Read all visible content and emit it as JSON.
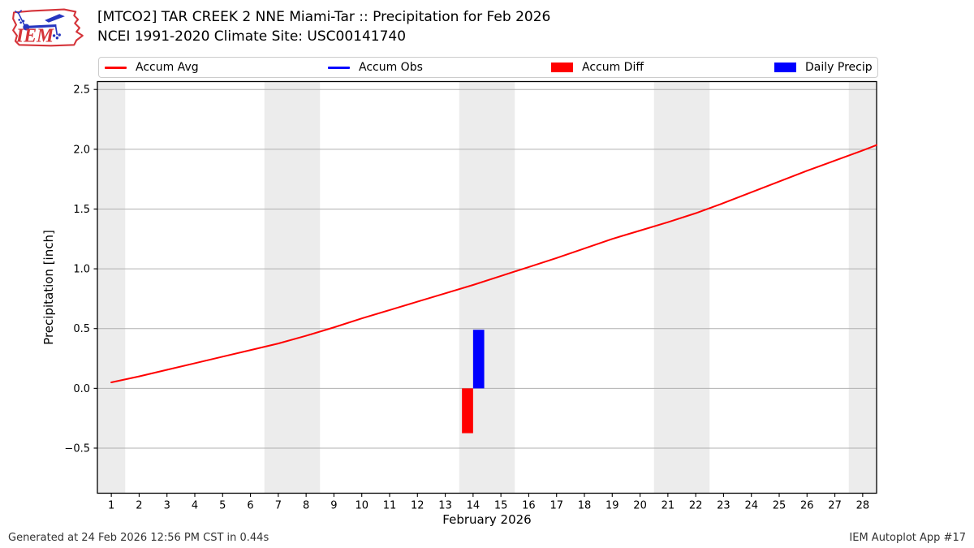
{
  "header": {
    "title_line1": "[MTCO2] TAR CREEK 2 NNE Miami-Tar :: Precipitation for Feb 2026",
    "title_line2": "NCEI 1991-2020 Climate Site: USC00141740",
    "logo_text": "IEM"
  },
  "legend": {
    "items": [
      {
        "label": "Accum Avg",
        "type": "line",
        "color": "#ff0000"
      },
      {
        "label": "Accum Obs",
        "type": "line",
        "color": "#0000ff"
      },
      {
        "label": "Accum Diff",
        "type": "rect",
        "color": "#ff0000"
      },
      {
        "label": "Daily Precip",
        "type": "rect",
        "color": "#0000ff"
      }
    ]
  },
  "chart_data": {
    "type": "line+bar",
    "xlabel": "February 2026",
    "ylabel": "Precipitation [inch]",
    "xlim": [
      0.5,
      28.5
    ],
    "ylim": [
      -0.877,
      2.566
    ],
    "xticks": [
      1,
      2,
      3,
      4,
      5,
      6,
      7,
      8,
      9,
      10,
      11,
      12,
      13,
      14,
      15,
      16,
      17,
      18,
      19,
      20,
      21,
      22,
      23,
      24,
      25,
      26,
      27,
      28
    ],
    "yticks": [
      -0.5,
      0.0,
      0.5,
      1.0,
      1.5,
      2.0,
      2.5
    ],
    "ytick_labels": [
      "−0.5",
      "0.0",
      "0.5",
      "1.0",
      "1.5",
      "2.0",
      "2.5"
    ],
    "grid": "horizontal",
    "weekend_bands_days": [
      [
        0.5,
        1.5
      ],
      [
        6.5,
        8.5
      ],
      [
        13.5,
        15.5
      ],
      [
        20.5,
        22.5
      ],
      [
        27.5,
        28.5
      ]
    ],
    "series": [
      {
        "name": "Accum Avg",
        "type": "line",
        "color": "#ff0000",
        "x": [
          1,
          2,
          3,
          4,
          5,
          6,
          7,
          8,
          9,
          10,
          11,
          12,
          13,
          14,
          15,
          16,
          17,
          18,
          19,
          20,
          21,
          22,
          23,
          24,
          25,
          26,
          27,
          28,
          28.5
        ],
        "values": [
          0.05,
          0.1,
          0.155,
          0.21,
          0.265,
          0.32,
          0.375,
          0.44,
          0.51,
          0.585,
          0.655,
          0.725,
          0.795,
          0.865,
          0.94,
          1.015,
          1.09,
          1.17,
          1.25,
          1.32,
          1.39,
          1.465,
          1.55,
          1.64,
          1.73,
          1.82,
          1.905,
          1.99,
          2.035
        ]
      },
      {
        "name": "Accum Obs",
        "type": "line",
        "color": "#0000ff",
        "x": [],
        "values": []
      },
      {
        "name": "Accum Diff",
        "type": "bar",
        "color": "#ff0000",
        "bar_offset_days": -0.2,
        "bar_width_days": 0.4,
        "x": [
          14
        ],
        "values": [
          -0.375
        ]
      },
      {
        "name": "Daily Precip",
        "type": "bar",
        "color": "#0000ff",
        "bar_offset_days": 0.2,
        "bar_width_days": 0.4,
        "x": [
          14
        ],
        "values": [
          0.49
        ]
      }
    ]
  },
  "footer": {
    "left": "Generated at 24 Feb 2026 12:56 PM CST in 0.44s",
    "right": "IEM Autoplot App #17"
  },
  "colors": {
    "band": "#ececec",
    "grid": "#b0b0b0",
    "spine": "#000000",
    "tick": "#000000",
    "logo_red": "#d5343a",
    "logo_blue": "#2636c0"
  }
}
